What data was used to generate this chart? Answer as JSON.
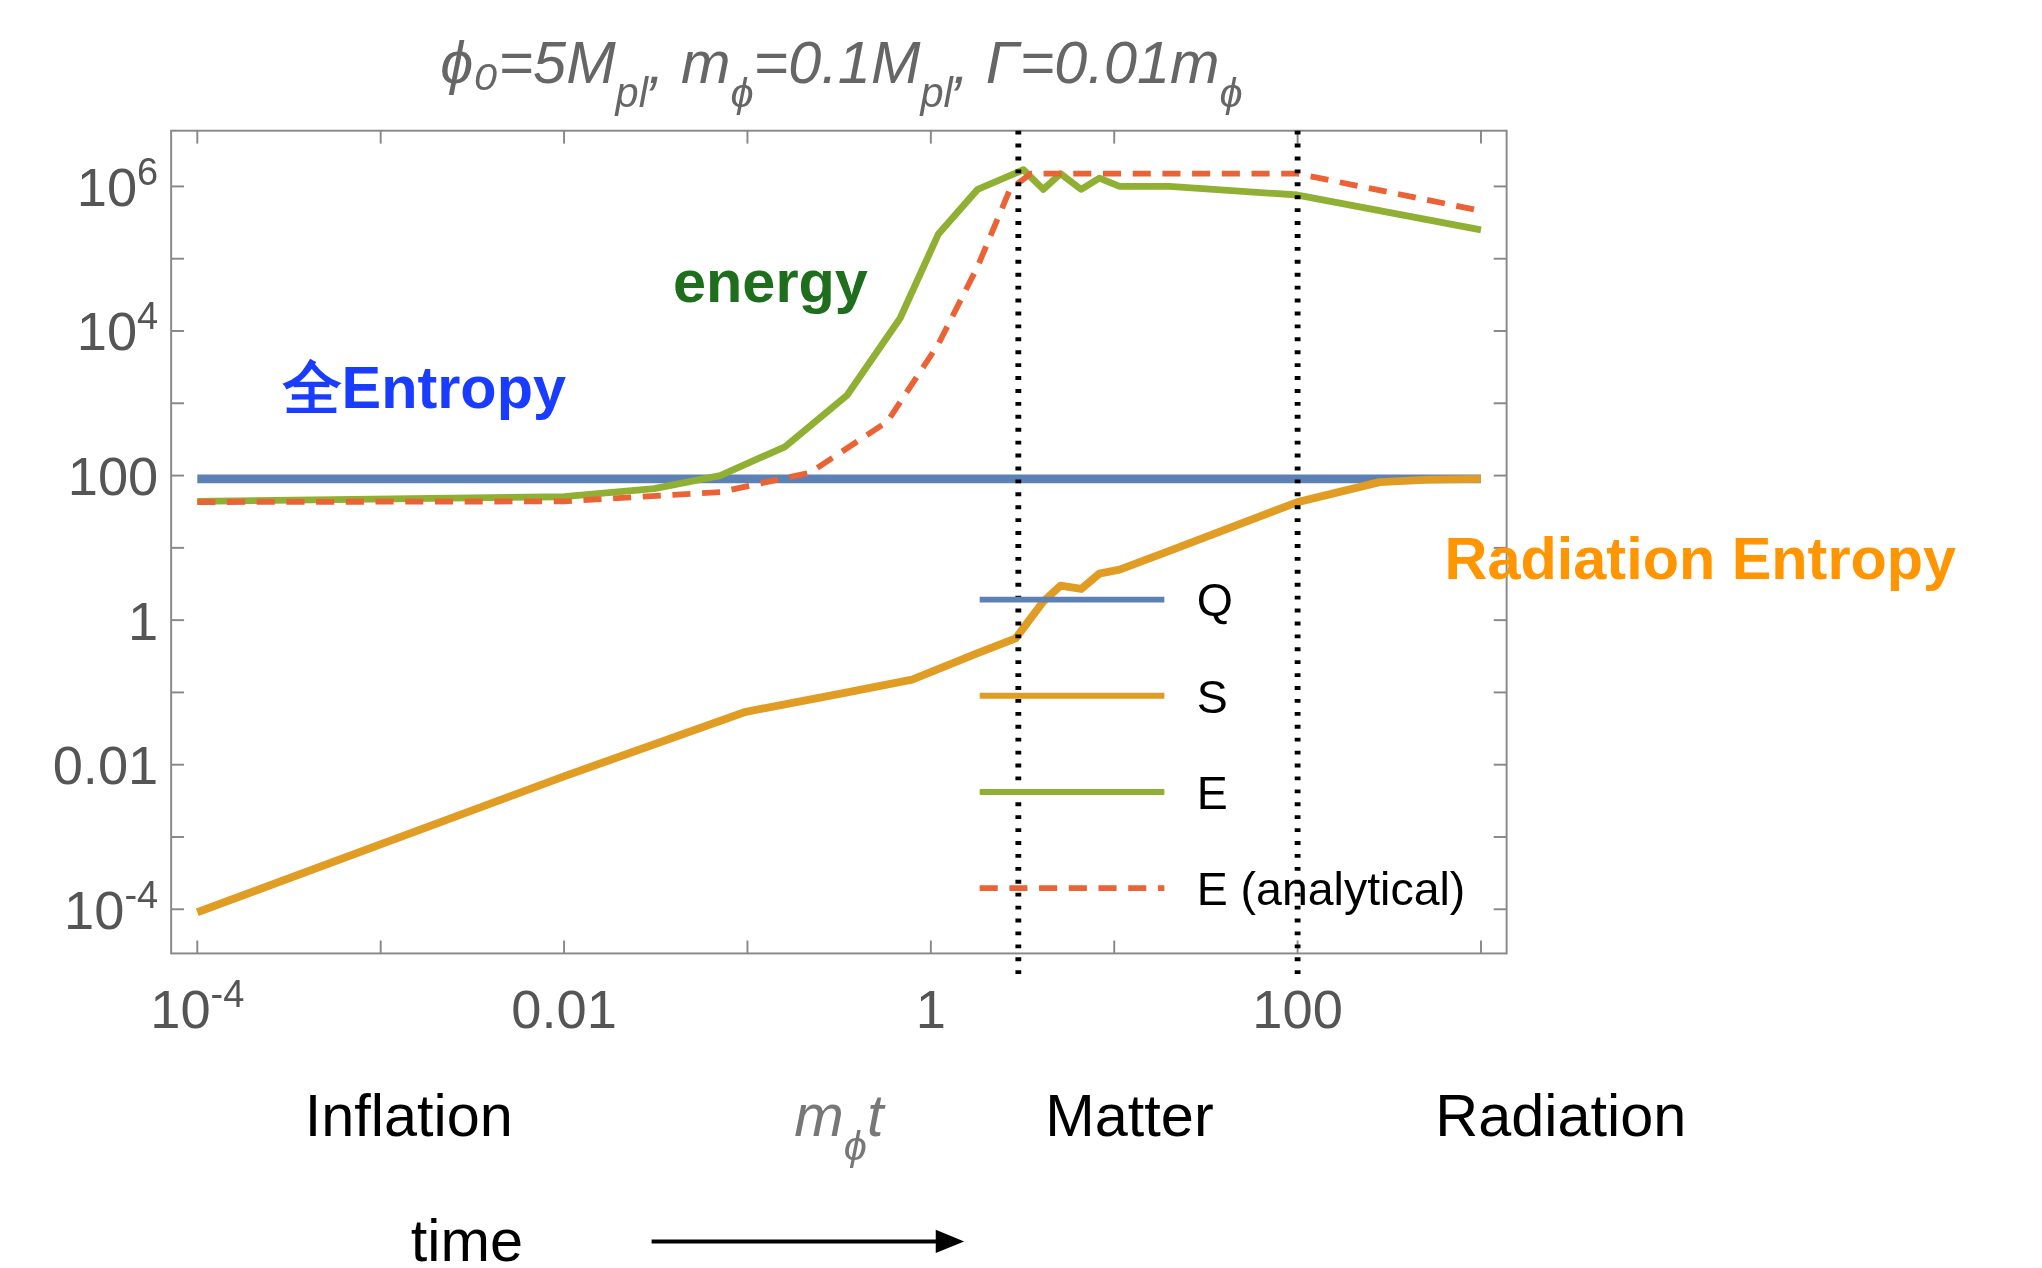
{
  "chart_data": {
    "type": "line",
    "title": "ϕ₀=5M$_{pl}$, m$_{ϕ}$=0.1M$_{pl}$, Γ=0.01m$_{ϕ}$",
    "xlabel": "m$_{ϕ}$t",
    "log": "xy",
    "legend": "bottom right",
    "xlim": [
      7.2e-05,
      1380
    ],
    "ylim": [
      2.45e-05,
      5900000
    ],
    "xticks": [
      {
        "value": 0.0001,
        "label": "10$^{-4}$"
      },
      {
        "value": 0.001,
        "label": null
      },
      0.01,
      {
        "value": 0.1,
        "label": null
      },
      1,
      {
        "value": 10,
        "label": null
      },
      100,
      {
        "value": 1000,
        "label": null
      }
    ],
    "yticks": [
      {
        "value": 0.0001,
        "label": "10$^{-4}$"
      },
      {
        "value": 0.001,
        "label": null
      },
      0.01,
      {
        "value": 0.1,
        "label": null
      },
      1,
      {
        "value": 10,
        "label": null
      },
      100,
      {
        "value": 1000,
        "label": null
      },
      {
        "value": 10000,
        "label": "10$^{4}$"
      },
      {
        "value": 100000,
        "label": null
      },
      {
        "value": 1000000,
        "label": "10$^{6}$"
      }
    ],
    "series": [
      {
        "name": "Q",
        "color": "#5e81b5",
        "line_style": "solid",
        "x": [
          0.0001,
          1000
        ],
        "values": [
          90,
          90
        ]
      },
      {
        "name": "S",
        "color": "#e19c24",
        "line_style": "solid",
        "x": [
          0.0001,
          0.01,
          0.098,
          0.35,
          0.79,
          1.8,
          2.9,
          4.1,
          5.1,
          6.6,
          8.3,
          10.7,
          20,
          100,
          280,
          520,
          1000
        ],
        "values": [
          9.1e-05,
          0.0069,
          0.054,
          0.1,
          0.15,
          0.35,
          0.56,
          1.8,
          3.0,
          2.7,
          4.4,
          5.0,
          9.1,
          43,
          81,
          88,
          90
        ]
      },
      {
        "name": "E",
        "color": "#8fb032",
        "line_style": "solid",
        "x": [
          0.0001,
          0.01,
          0.031,
          0.071,
          0.16,
          0.35,
          0.68,
          1.1,
          1.8,
          3.2,
          4.1,
          5.1,
          6.6,
          8.3,
          10.7,
          20,
          100,
          1000
        ],
        "values": [
          44,
          51,
          66,
          100,
          250,
          1300,
          15000,
          220000,
          910000,
          1700000,
          910000,
          1500000,
          910000,
          1300000,
          1000000,
          1000000,
          760000,
          250000
        ]
      },
      {
        "name": "E (analytical)",
        "color": "#eb6235",
        "line_style": "dashed",
        "x": [
          0.0001,
          0.01,
          0.071,
          0.22,
          0.58,
          1.1,
          1.8,
          2.7,
          3.5,
          100,
          1000
        ],
        "values": [
          43,
          44,
          59,
          110,
          560,
          6600,
          78000,
          910000,
          1500000,
          1500000,
          460000
        ]
      }
    ],
    "ref_lines": [
      {
        "axis": "x",
        "value": 3,
        "color": "#000000",
        "line_style": "dotted"
      },
      {
        "axis": "x",
        "value": 100,
        "color": "#000000",
        "line_style": "dotted"
      }
    ],
    "annotations": [
      "energy",
      "全Entropy",
      "Radiation Entropy",
      "Inflation",
      "Matter",
      "Radiation",
      "time"
    ]
  }
}
